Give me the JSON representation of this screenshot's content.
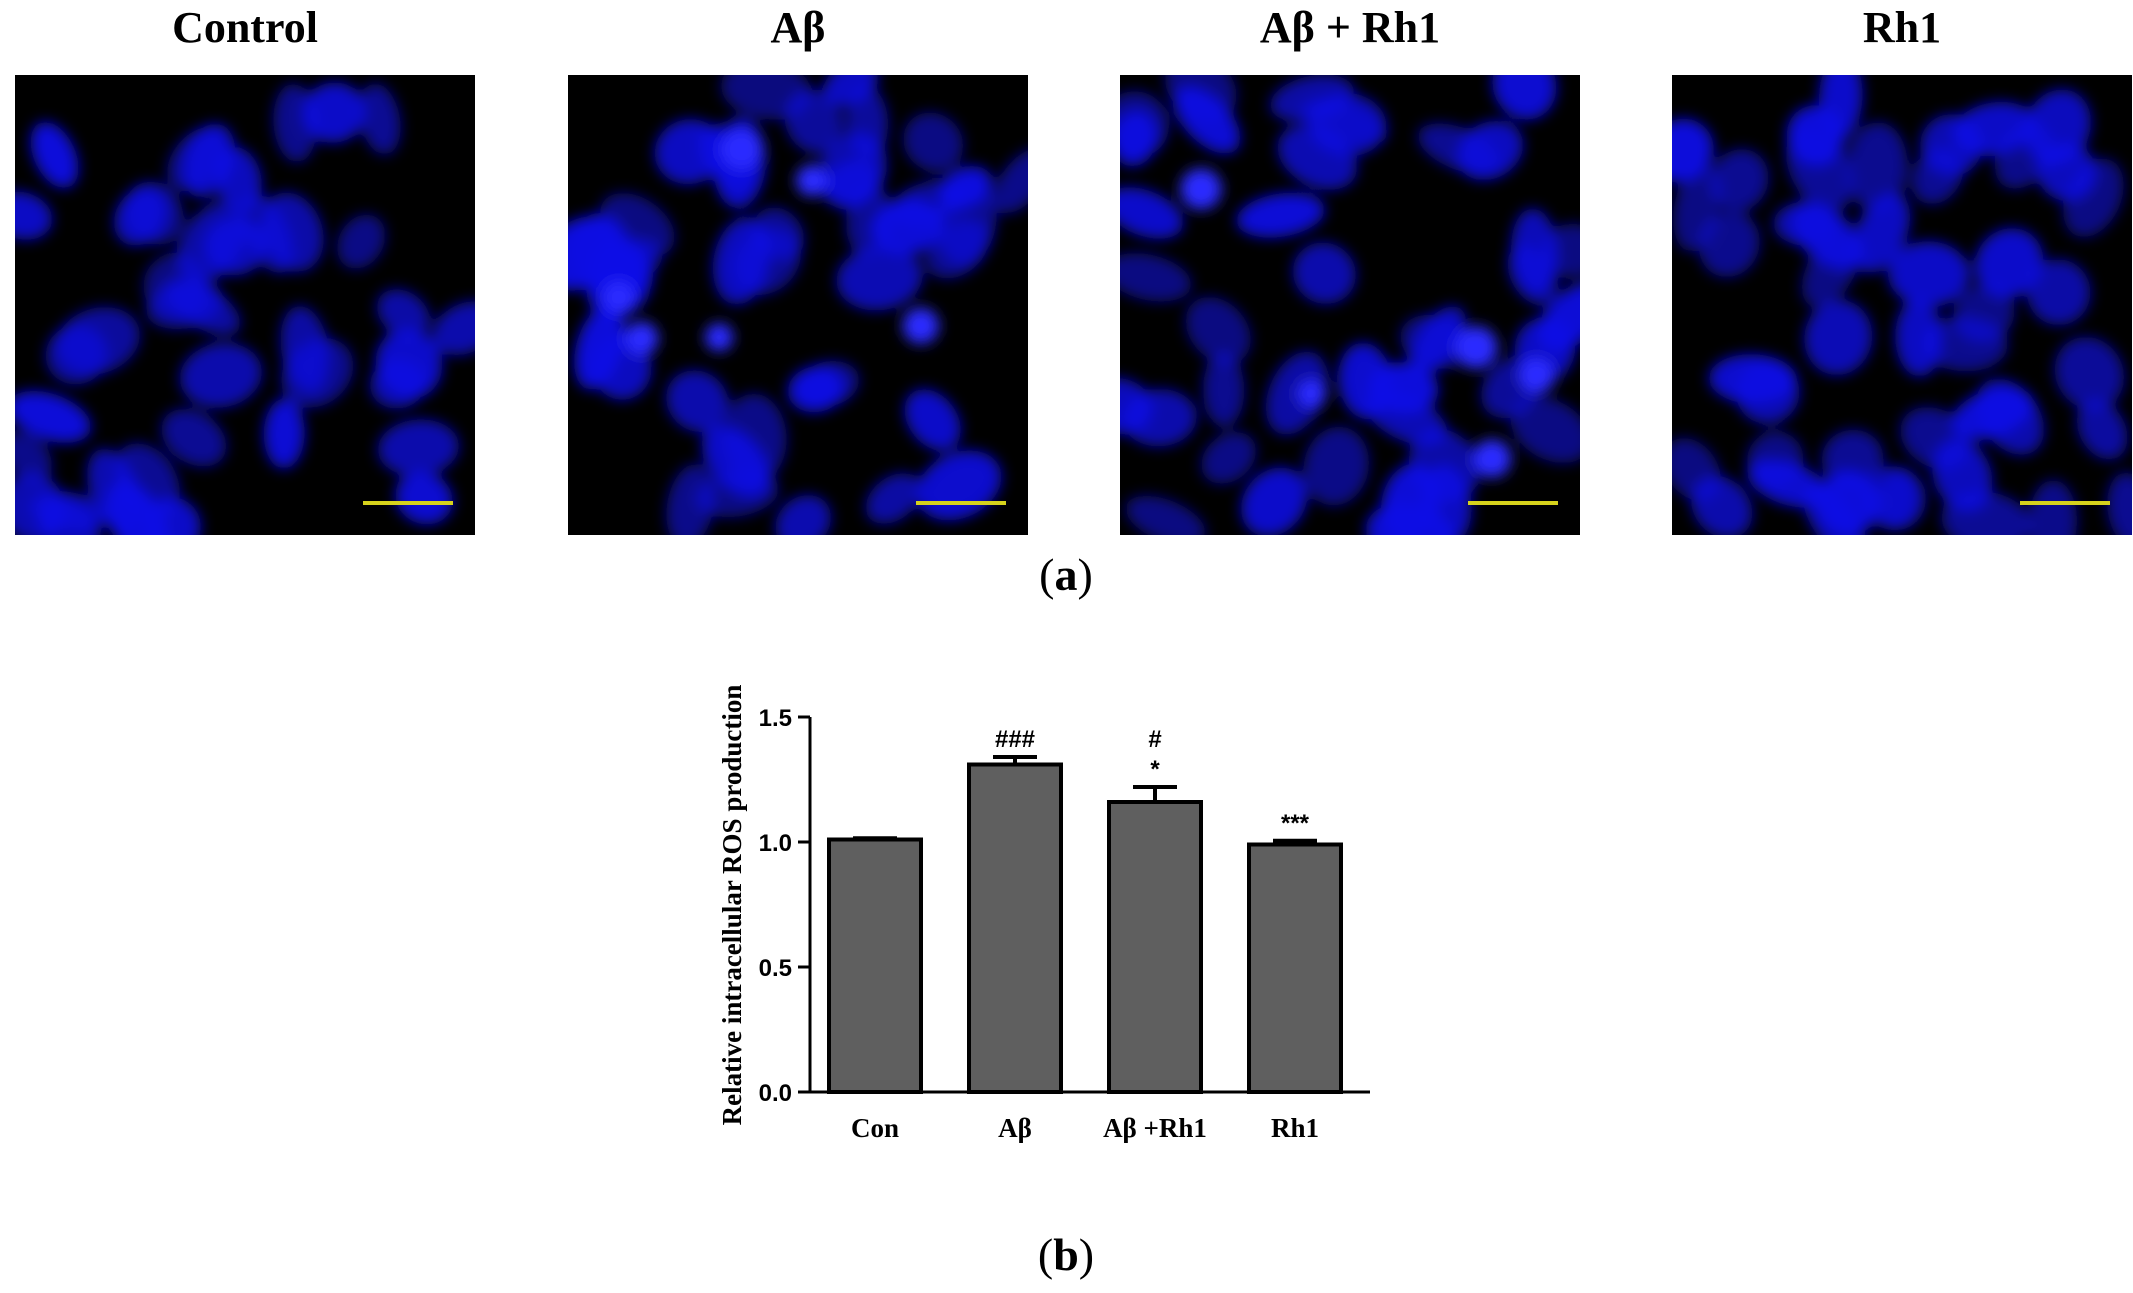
{
  "panel_a": {
    "titles": [
      "Control",
      "Aβ",
      "Aβ + Rh1",
      "Rh1"
    ],
    "caption_letter": "a"
  },
  "panel_b": {
    "caption_letter": "b"
  },
  "chart_data": {
    "type": "bar",
    "categories": [
      "Con",
      "Aβ",
      "Aβ +Rh1",
      "Rh1"
    ],
    "values": [
      1.01,
      1.31,
      1.16,
      0.99
    ],
    "errors": [
      0.005,
      0.03,
      0.06,
      0.015
    ],
    "annotations": [
      [],
      [
        "###"
      ],
      [
        "#",
        "*"
      ],
      [
        "***"
      ]
    ],
    "ylabel": "Relative intracellular ROS production",
    "xlabel": "",
    "ylim": [
      0,
      1.5
    ],
    "yticks": [
      "0.0",
      "0.5",
      "1.0",
      "1.5"
    ],
    "bar_color": "#5f5f5f",
    "grid": false,
    "legend": "none"
  },
  "colors": {
    "nuclei": "#1010e6",
    "scale_bar": "#d6d21c"
  }
}
